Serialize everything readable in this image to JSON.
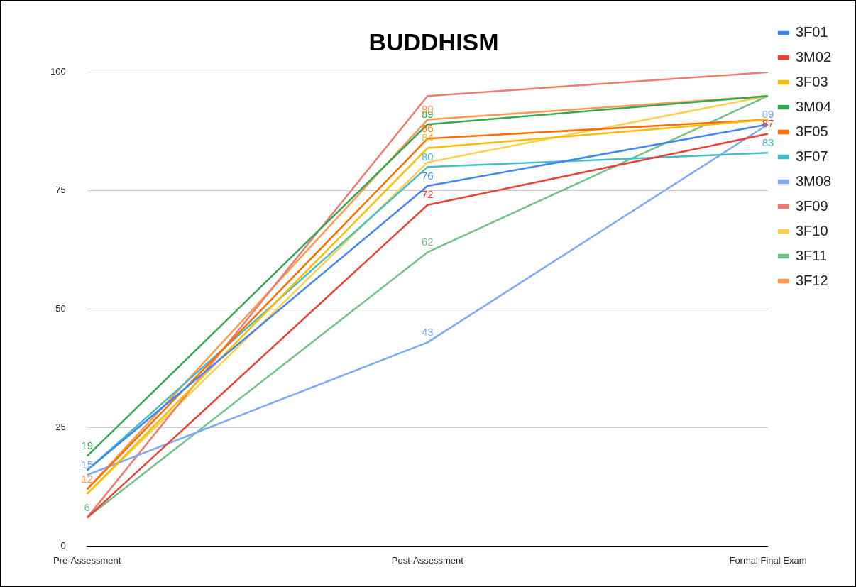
{
  "chart_data": {
    "type": "line",
    "title": "BUDDHISM",
    "categories": [
      "Pre-Assessment",
      "Post-Assessment",
      "Formal Final Exam"
    ],
    "ylim": [
      0,
      100
    ],
    "yticks": [
      0,
      25,
      50,
      75,
      100
    ],
    "grid": "y",
    "legend": "right",
    "marker": "none",
    "line_style": "solid",
    "series": [
      {
        "name": "3F01",
        "color": "#4285f4",
        "values": [
          16,
          76,
          89
        ],
        "value_labels": [
          null,
          "76",
          null
        ]
      },
      {
        "name": "3M02",
        "color": "#ea4335",
        "values": [
          6,
          72,
          87
        ],
        "value_labels": [
          null,
          "72",
          "87"
        ]
      },
      {
        "name": "3F03",
        "color": "#fbbc04",
        "values": [
          11,
          84,
          90
        ],
        "value_labels": [
          null,
          "84",
          null
        ]
      },
      {
        "name": "3M04",
        "color": "#34a853",
        "values": [
          19,
          89,
          95
        ],
        "value_labels": [
          "19",
          "89",
          null
        ]
      },
      {
        "name": "3F05",
        "color": "#ff6d01",
        "values": [
          12,
          86,
          90
        ],
        "value_labels": [
          null,
          "86",
          null
        ]
      },
      {
        "name": "3F07",
        "color": "#46bdc6",
        "values": [
          16,
          80,
          83
        ],
        "value_labels": [
          null,
          "80",
          "83"
        ]
      },
      {
        "name": "3M08",
        "color": "#7baaf7",
        "values": [
          15,
          43,
          89
        ],
        "value_labels": [
          "15",
          "43",
          "89"
        ]
      },
      {
        "name": "3F09",
        "color": "#f07b72",
        "values": [
          6,
          95,
          100
        ],
        "value_labels": [
          null,
          null,
          null
        ]
      },
      {
        "name": "3F10",
        "color": "#fcd04f",
        "values": [
          11,
          81,
          95
        ],
        "value_labels": [
          null,
          null,
          null
        ]
      },
      {
        "name": "3F11",
        "color": "#71c287",
        "values": [
          6,
          62,
          95
        ],
        "value_labels": [
          "6",
          "62",
          null
        ]
      },
      {
        "name": "3F12",
        "color": "#ff994d",
        "values": [
          12,
          90,
          95
        ],
        "value_labels": [
          "12",
          "90",
          null
        ]
      }
    ]
  }
}
